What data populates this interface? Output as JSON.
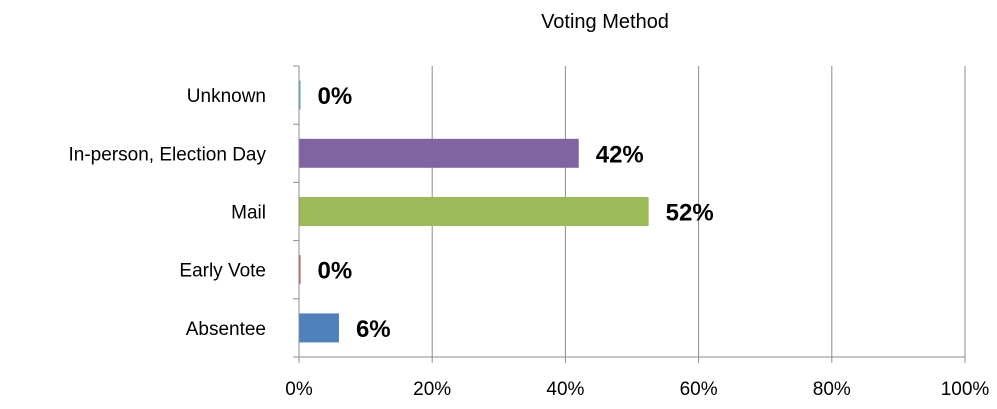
{
  "chart_data": {
    "type": "bar",
    "orientation": "horizontal",
    "title": "Voting Method",
    "xlabel": "",
    "ylabel": "",
    "categories": [
      "Unknown",
      "In-person, Election Day",
      "Mail",
      "Early Vote",
      "Absentee"
    ],
    "values": [
      0.2,
      42,
      52.5,
      0.2,
      6
    ],
    "data_labels": [
      "0%",
      "42%",
      "52%",
      "0%",
      "6%"
    ],
    "colors": [
      "#4BACC6",
      "#8064A2",
      "#9BBB59",
      "#C0504D",
      "#4F81BD"
    ],
    "xlim": [
      0,
      100
    ],
    "x_ticks": [
      0,
      20,
      40,
      60,
      80,
      100
    ],
    "x_tick_labels": [
      "0%",
      "20%",
      "40%",
      "60%",
      "80%",
      "100%"
    ],
    "grid": true,
    "legend": "none"
  }
}
